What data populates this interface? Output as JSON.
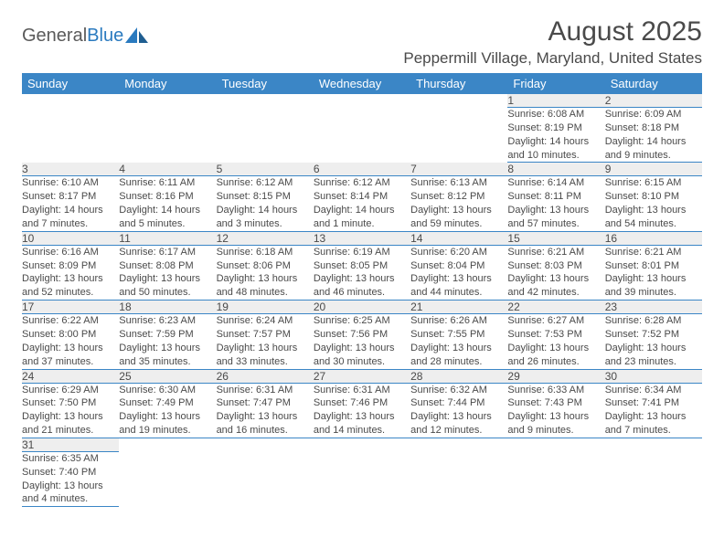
{
  "logo": {
    "word1": "General",
    "word2": "Blue"
  },
  "title": "August 2025",
  "location": "Peppermill Village, Maryland, United States",
  "header_bg": "#3b86c6",
  "day_headers": [
    "Sunday",
    "Monday",
    "Tuesday",
    "Wednesday",
    "Thursday",
    "Friday",
    "Saturday"
  ],
  "weeks": [
    [
      null,
      null,
      null,
      null,
      null,
      {
        "n": "1",
        "sr": "6:08 AM",
        "ss": "8:19 PM",
        "dl": "14 hours and 10 minutes."
      },
      {
        "n": "2",
        "sr": "6:09 AM",
        "ss": "8:18 PM",
        "dl": "14 hours and 9 minutes."
      }
    ],
    [
      {
        "n": "3",
        "sr": "6:10 AM",
        "ss": "8:17 PM",
        "dl": "14 hours and 7 minutes."
      },
      {
        "n": "4",
        "sr": "6:11 AM",
        "ss": "8:16 PM",
        "dl": "14 hours and 5 minutes."
      },
      {
        "n": "5",
        "sr": "6:12 AM",
        "ss": "8:15 PM",
        "dl": "14 hours and 3 minutes."
      },
      {
        "n": "6",
        "sr": "6:12 AM",
        "ss": "8:14 PM",
        "dl": "14 hours and 1 minute."
      },
      {
        "n": "7",
        "sr": "6:13 AM",
        "ss": "8:12 PM",
        "dl": "13 hours and 59 minutes."
      },
      {
        "n": "8",
        "sr": "6:14 AM",
        "ss": "8:11 PM",
        "dl": "13 hours and 57 minutes."
      },
      {
        "n": "9",
        "sr": "6:15 AM",
        "ss": "8:10 PM",
        "dl": "13 hours and 54 minutes."
      }
    ],
    [
      {
        "n": "10",
        "sr": "6:16 AM",
        "ss": "8:09 PM",
        "dl": "13 hours and 52 minutes."
      },
      {
        "n": "11",
        "sr": "6:17 AM",
        "ss": "8:08 PM",
        "dl": "13 hours and 50 minutes."
      },
      {
        "n": "12",
        "sr": "6:18 AM",
        "ss": "8:06 PM",
        "dl": "13 hours and 48 minutes."
      },
      {
        "n": "13",
        "sr": "6:19 AM",
        "ss": "8:05 PM",
        "dl": "13 hours and 46 minutes."
      },
      {
        "n": "14",
        "sr": "6:20 AM",
        "ss": "8:04 PM",
        "dl": "13 hours and 44 minutes."
      },
      {
        "n": "15",
        "sr": "6:21 AM",
        "ss": "8:03 PM",
        "dl": "13 hours and 42 minutes."
      },
      {
        "n": "16",
        "sr": "6:21 AM",
        "ss": "8:01 PM",
        "dl": "13 hours and 39 minutes."
      }
    ],
    [
      {
        "n": "17",
        "sr": "6:22 AM",
        "ss": "8:00 PM",
        "dl": "13 hours and 37 minutes."
      },
      {
        "n": "18",
        "sr": "6:23 AM",
        "ss": "7:59 PM",
        "dl": "13 hours and 35 minutes."
      },
      {
        "n": "19",
        "sr": "6:24 AM",
        "ss": "7:57 PM",
        "dl": "13 hours and 33 minutes."
      },
      {
        "n": "20",
        "sr": "6:25 AM",
        "ss": "7:56 PM",
        "dl": "13 hours and 30 minutes."
      },
      {
        "n": "21",
        "sr": "6:26 AM",
        "ss": "7:55 PM",
        "dl": "13 hours and 28 minutes."
      },
      {
        "n": "22",
        "sr": "6:27 AM",
        "ss": "7:53 PM",
        "dl": "13 hours and 26 minutes."
      },
      {
        "n": "23",
        "sr": "6:28 AM",
        "ss": "7:52 PM",
        "dl": "13 hours and 23 minutes."
      }
    ],
    [
      {
        "n": "24",
        "sr": "6:29 AM",
        "ss": "7:50 PM",
        "dl": "13 hours and 21 minutes."
      },
      {
        "n": "25",
        "sr": "6:30 AM",
        "ss": "7:49 PM",
        "dl": "13 hours and 19 minutes."
      },
      {
        "n": "26",
        "sr": "6:31 AM",
        "ss": "7:47 PM",
        "dl": "13 hours and 16 minutes."
      },
      {
        "n": "27",
        "sr": "6:31 AM",
        "ss": "7:46 PM",
        "dl": "13 hours and 14 minutes."
      },
      {
        "n": "28",
        "sr": "6:32 AM",
        "ss": "7:44 PM",
        "dl": "13 hours and 12 minutes."
      },
      {
        "n": "29",
        "sr": "6:33 AM",
        "ss": "7:43 PM",
        "dl": "13 hours and 9 minutes."
      },
      {
        "n": "30",
        "sr": "6:34 AM",
        "ss": "7:41 PM",
        "dl": "13 hours and 7 minutes."
      }
    ],
    [
      {
        "n": "31",
        "sr": "6:35 AM",
        "ss": "7:40 PM",
        "dl": "13 hours and 4 minutes."
      },
      null,
      null,
      null,
      null,
      null,
      null
    ]
  ],
  "labels": {
    "sunrise": "Sunrise: ",
    "sunset": "Sunset: ",
    "daylight": "Daylight: "
  }
}
